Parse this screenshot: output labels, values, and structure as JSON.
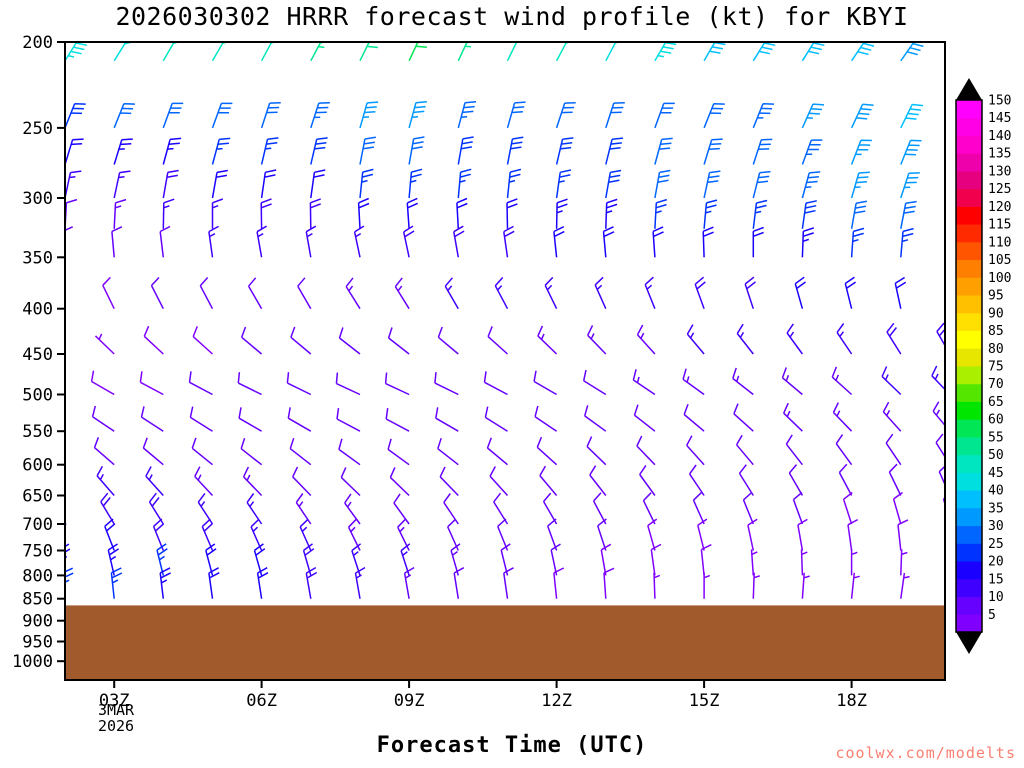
{
  "title": "2026030302 HRRR forecast wind profile (kt) for KBYI",
  "xlabel": "Forecast Time (UTC)",
  "watermark": "coolwx.com/modelts",
  "date_label": {
    "line1": "3MAR",
    "line2": "2026"
  },
  "chart_data": {
    "type": "wind-barb",
    "title": "2026030302 HRRR forecast wind profile (kt) for KBYI",
    "units": "kt",
    "station": "KBYI",
    "model": "HRRR",
    "init": "2026030302",
    "x_axis": {
      "label": "Forecast Time (UTC)",
      "tick_hours": [
        3,
        6,
        9,
        12,
        15,
        18
      ],
      "tick_labels": [
        "03Z",
        "06Z",
        "09Z",
        "12Z",
        "15Z",
        "18Z"
      ],
      "range_hours": [
        2,
        19.9
      ]
    },
    "y_axis": {
      "ticks": [
        200,
        250,
        300,
        350,
        400,
        450,
        500,
        550,
        600,
        650,
        700,
        750,
        800,
        850,
        900,
        950,
        1000
      ],
      "scale": "log",
      "range": [
        200,
        1050
      ]
    },
    "terrain": {
      "top_pressure": 865,
      "color": "#a05a2c"
    },
    "colorbar": {
      "min": 5,
      "max": 150,
      "step": 5,
      "colors": [
        "#7f00ff",
        "#6600ff",
        "#4000ff",
        "#1a00ff",
        "#0033ff",
        "#0066ff",
        "#0099ff",
        "#00bfff",
        "#00dfe0",
        "#00e6c0",
        "#00e690",
        "#00e655",
        "#00e600",
        "#55e600",
        "#aaee00",
        "#e6e600",
        "#ffff00",
        "#ffe000",
        "#ffc000",
        "#ffa000",
        "#ff8000",
        "#ff5500",
        "#ff2a00",
        "#ff0000",
        "#f0004d",
        "#e60080",
        "#ee00aa",
        "#ff00cc",
        "#ff00e6",
        "#ff00ff"
      ]
    },
    "times": [
      2,
      3,
      4,
      5,
      6,
      7,
      8,
      9,
      10,
      11,
      12,
      13,
      14,
      15,
      16,
      17,
      18,
      19,
      20
    ],
    "levels": [
      {
        "p": 210,
        "spd": [
          45,
          48,
          50,
          50,
          52,
          55,
          58,
          60,
          55,
          52,
          50,
          48,
          45,
          42,
          40,
          40,
          42,
          38,
          35
        ],
        "dir": [
          32,
          32,
          30,
          30,
          28,
          28,
          26,
          25,
          25,
          26,
          28,
          28,
          30,
          30,
          32,
          32,
          34,
          35,
          35
        ]
      },
      {
        "p": 250,
        "spd": [
          28,
          30,
          30,
          32,
          32,
          33,
          35,
          35,
          33,
          32,
          32,
          30,
          30,
          32,
          33,
          35,
          38,
          40,
          42
        ],
        "dir": [
          22,
          22,
          20,
          20,
          18,
          18,
          16,
          15,
          15,
          16,
          18,
          18,
          20,
          22,
          22,
          24,
          25,
          26,
          28
        ]
      },
      {
        "p": 275,
        "spd": [
          22,
          23,
          24,
          26,
          27,
          28,
          30,
          30,
          29,
          28,
          29,
          29,
          30,
          31,
          32,
          34,
          36,
          38,
          40
        ],
        "dir": [
          17,
          17,
          15,
          15,
          13,
          13,
          11,
          10,
          10,
          11,
          13,
          14,
          15,
          17,
          18,
          20,
          21,
          22,
          24
        ]
      },
      {
        "p": 300,
        "spd": [
          15,
          15,
          18,
          20,
          22,
          22,
          25,
          25,
          25,
          25,
          26,
          28,
          30,
          30,
          32,
          33,
          35,
          36,
          38
        ],
        "dir": [
          12,
          12,
          10,
          10,
          8,
          8,
          6,
          5,
          5,
          6,
          8,
          10,
          10,
          12,
          14,
          15,
          16,
          18,
          20
        ]
      },
      {
        "p": 325,
        "spd": [
          12,
          13,
          15,
          17,
          18,
          19,
          20,
          21,
          21,
          21,
          23,
          24,
          25,
          26,
          27,
          28,
          30,
          31,
          33
        ],
        "dir": [
          3,
          3,
          1,
          0,
          359,
          359,
          357,
          356,
          357,
          359,
          1,
          2,
          3,
          5,
          7,
          8,
          10,
          11,
          13
        ]
      },
      {
        "p": 350,
        "spd": [
          10,
          12,
          12,
          15,
          15,
          16,
          16,
          18,
          18,
          18,
          20,
          20,
          20,
          22,
          22,
          24,
          25,
          26,
          28
        ],
        "dir": [
          355,
          355,
          353,
          352,
          350,
          350,
          348,
          348,
          350,
          352,
          354,
          355,
          356,
          358,
          0,
          2,
          4,
          5,
          6
        ]
      },
      {
        "p": 400,
        "spd": [
          8,
          8,
          10,
          10,
          12,
          12,
          13,
          14,
          15,
          15,
          15,
          16,
          16,
          18,
          18,
          20,
          20,
          21,
          22
        ],
        "dir": [
          335,
          334,
          333,
          332,
          330,
          330,
          328,
          328,
          330,
          332,
          334,
          336,
          338,
          340,
          342,
          344,
          346,
          348,
          350
        ]
      },
      {
        "p": 450,
        "spd": [
          6,
          7,
          8,
          9,
          10,
          10,
          11,
          12,
          12,
          12,
          13,
          13,
          14,
          15,
          15,
          16,
          17,
          18,
          18
        ],
        "dir": [
          315,
          314,
          313,
          312,
          310,
          310,
          308,
          308,
          310,
          312,
          314,
          316,
          318,
          320,
          322,
          324,
          326,
          328,
          330
        ]
      },
      {
        "p": 500,
        "spd": [
          8,
          8,
          9,
          10,
          10,
          10,
          10,
          11,
          11,
          12,
          12,
          12,
          13,
          13,
          13,
          14,
          14,
          15,
          15
        ],
        "dir": [
          300,
          300,
          298,
          298,
          296,
          296,
          295,
          295,
          296,
          298,
          300,
          302,
          304,
          306,
          308,
          310,
          312,
          314,
          316
        ]
      },
      {
        "p": 550,
        "spd": [
          10,
          10,
          10,
          11,
          11,
          10,
          10,
          10,
          10,
          11,
          12,
          12,
          12,
          12,
          12,
          13,
          13,
          14,
          14
        ],
        "dir": [
          305,
          304,
          303,
          302,
          300,
          300,
          298,
          298,
          300,
          302,
          304,
          306,
          308,
          310,
          312,
          314,
          316,
          318,
          320
        ]
      },
      {
        "p": 600,
        "spd": [
          12,
          12,
          12,
          12,
          12,
          12,
          11,
          10,
          10,
          10,
          11,
          12,
          12,
          12,
          12,
          12,
          12,
          12,
          12
        ],
        "dir": [
          312,
          311,
          310,
          309,
          308,
          308,
          306,
          306,
          308,
          310,
          312,
          314,
          316,
          318,
          320,
          322,
          324,
          326,
          328
        ]
      },
      {
        "p": 650,
        "spd": [
          14,
          15,
          15,
          14,
          13,
          12,
          12,
          11,
          10,
          10,
          10,
          10,
          11,
          12,
          12,
          12,
          10,
          10,
          10
        ],
        "dir": [
          320,
          319,
          318,
          317,
          316,
          316,
          314,
          314,
          316,
          318,
          320,
          322,
          324,
          326,
          328,
          330,
          332,
          334,
          336
        ]
      },
      {
        "p": 700,
        "spd": [
          17,
          18,
          18,
          16,
          15,
          14,
          13,
          12,
          12,
          10,
          10,
          10,
          10,
          10,
          10,
          10,
          9,
          8,
          8
        ],
        "dir": [
          330,
          329,
          328,
          327,
          326,
          326,
          324,
          324,
          326,
          328,
          330,
          332,
          334,
          336,
          338,
          340,
          342,
          344,
          346
        ]
      },
      {
        "p": 750,
        "spd": [
          20,
          20,
          19,
          18,
          17,
          15,
          14,
          13,
          12,
          12,
          10,
          10,
          9,
          8,
          8,
          8,
          8,
          8,
          7
        ],
        "dir": [
          340,
          339,
          338,
          337,
          336,
          336,
          334,
          334,
          336,
          338,
          340,
          342,
          344,
          346,
          348,
          350,
          352,
          354,
          356
        ]
      },
      {
        "p": 800,
        "spd": [
          23,
          24,
          25,
          22,
          20,
          18,
          16,
          15,
          13,
          12,
          10,
          9,
          8,
          8,
          7,
          7,
          6,
          5,
          5
        ],
        "dir": [
          348,
          347,
          346,
          345,
          344,
          344,
          342,
          342,
          344,
          346,
          348,
          350,
          352,
          354,
          356,
          358,
          0,
          2,
          4
        ]
      },
      {
        "p": 850,
        "spd": [
          25,
          25,
          24,
          22,
          20,
          18,
          15,
          13,
          12,
          10,
          9,
          8,
          7,
          6,
          5,
          5,
          5,
          5,
          5
        ],
        "dir": [
          355,
          354,
          353,
          352,
          351,
          350,
          350,
          350,
          351,
          352,
          354,
          356,
          358,
          0,
          2,
          4,
          6,
          8,
          10
        ]
      }
    ]
  }
}
